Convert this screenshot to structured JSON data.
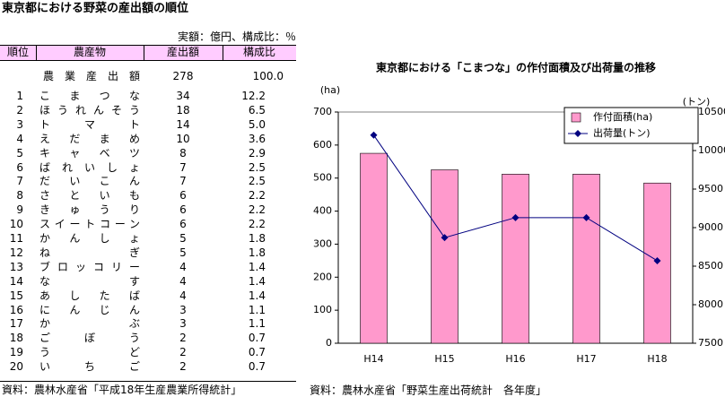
{
  "page_title": "東京都における野菜の産出額の順位",
  "table": {
    "unit_note": "実額：億円、構成比：％",
    "headers": [
      "順位",
      "農産物",
      "産出額",
      "構成比"
    ],
    "total": {
      "name": "農業産出額",
      "value": "278",
      "share": "100.0"
    },
    "rows": [
      [
        "1",
        "こまつな",
        "34",
        "12.2"
      ],
      [
        "2",
        "ほうれんそう",
        "18",
        "6.5"
      ],
      [
        "3",
        "トマト",
        "14",
        "5.0"
      ],
      [
        "4",
        "えだまめ",
        "10",
        "3.6"
      ],
      [
        "5",
        "キャベツ",
        "8",
        "2.9"
      ],
      [
        "6",
        "ばれいしょ",
        "7",
        "2.5"
      ],
      [
        "7",
        "だいこん",
        "7",
        "2.5"
      ],
      [
        "8",
        "さといも",
        "6",
        "2.2"
      ],
      [
        "9",
        "きゅうり",
        "6",
        "2.2"
      ],
      [
        "10",
        "スイートコーン",
        "6",
        "2.2"
      ],
      [
        "11",
        "かんしょ",
        "5",
        "1.8"
      ],
      [
        "12",
        "ねぎ",
        "5",
        "1.8"
      ],
      [
        "13",
        "ブロッコリー",
        "4",
        "1.4"
      ],
      [
        "14",
        "なす",
        "4",
        "1.4"
      ],
      [
        "15",
        "あしたば",
        "4",
        "1.4"
      ],
      [
        "16",
        "にんじん",
        "3",
        "1.1"
      ],
      [
        "17",
        "かぶ",
        "3",
        "1.1"
      ],
      [
        "18",
        "ごぼう",
        "2",
        "0.7"
      ],
      [
        "19",
        "うど",
        "2",
        "0.7"
      ],
      [
        "20",
        "いちご",
        "2",
        "0.7"
      ]
    ],
    "source": "資料：農林水産省「平成18年生産農業所得統計」"
  },
  "chart_data": {
    "type": "combo",
    "title": "東京都における「こまつな」の作付面積及び出荷量の推移",
    "y_label": "(ha)",
    "y2_label": "(トン)",
    "categories": [
      "H14",
      "H15",
      "H16",
      "H17",
      "H18"
    ],
    "series": [
      {
        "name": "作付面積(ha)",
        "type": "bar",
        "color": "#ff99cc",
        "values": [
          575,
          525,
          512,
          512,
          485
        ]
      },
      {
        "name": "出荷量(トン)",
        "type": "line",
        "color": "#000080",
        "axis": "y2",
        "values": [
          10200,
          8870,
          9130,
          9130,
          8570
        ]
      }
    ],
    "ylim": [
      0,
      700
    ],
    "yticks": [
      0,
      100,
      200,
      300,
      400,
      500,
      600,
      700
    ],
    "y2lim": [
      7500,
      10500
    ],
    "y2ticks": [
      7500,
      8000,
      8500,
      9000,
      9500,
      10000,
      10500
    ],
    "grid": false,
    "legend": "upper right",
    "source": "資料：農林水産省「野菜生産出荷統計　各年度」"
  }
}
